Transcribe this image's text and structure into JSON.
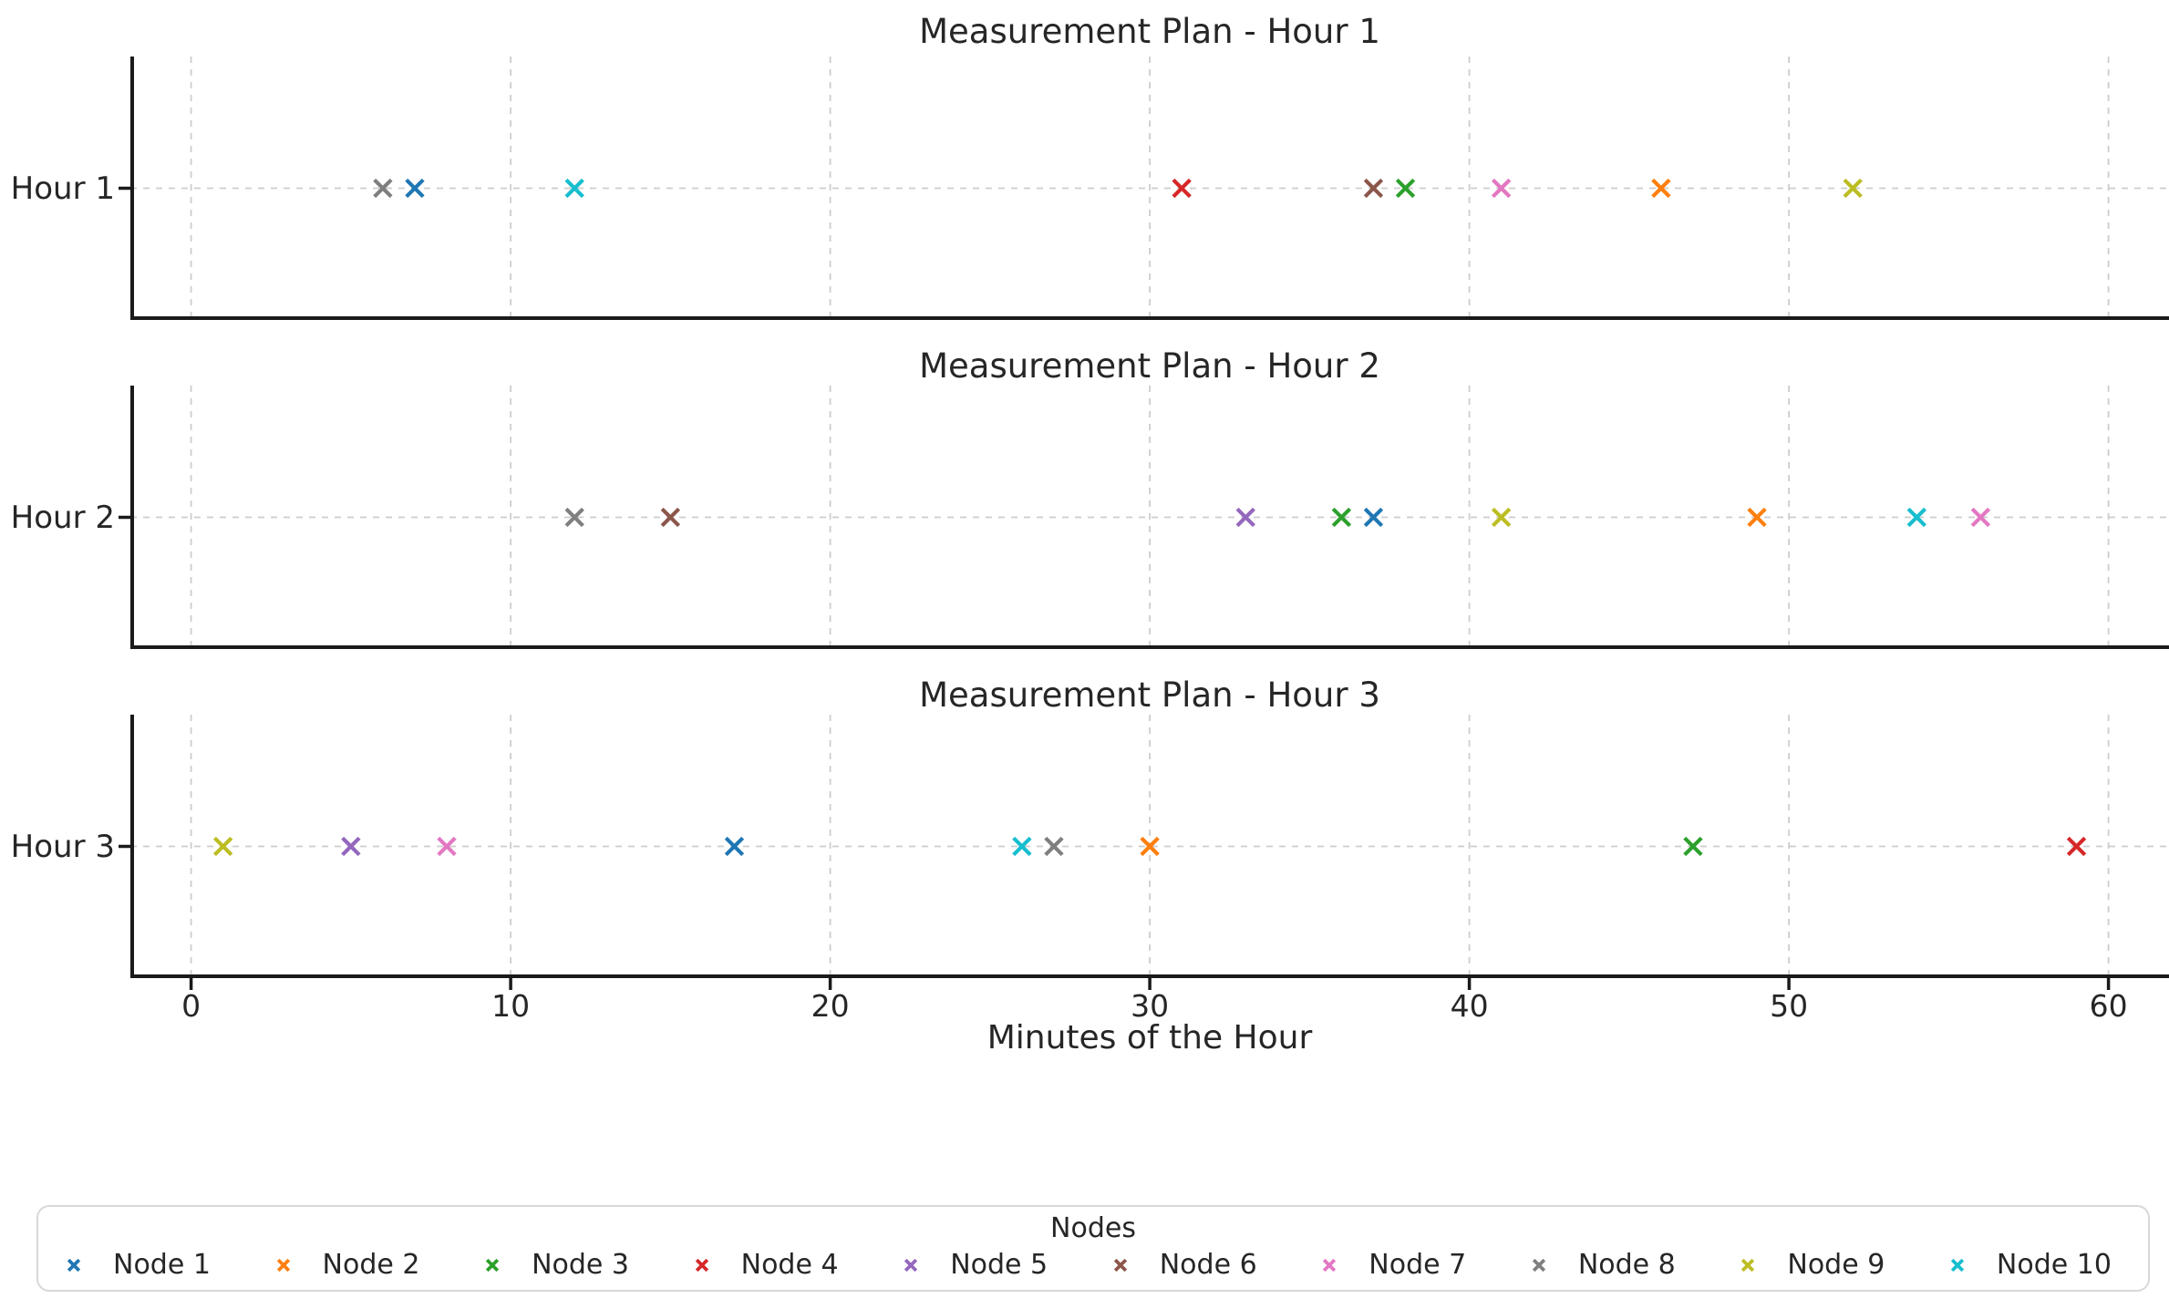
{
  "figure": {
    "background": "#ffffff"
  },
  "chart_data": {
    "type": "scatter",
    "marker": "x",
    "grid": true,
    "xlabel": "Minutes of the Hour",
    "xticks": [
      0,
      10,
      20,
      30,
      40,
      50,
      60
    ],
    "xlim": [
      -1.9,
      61.9
    ],
    "subplots": [
      {
        "title": "Measurement Plan - Hour 1",
        "ylabel": "Hour 1"
      },
      {
        "title": "Measurement Plan - Hour 2",
        "ylabel": "Hour 2"
      },
      {
        "title": "Measurement Plan - Hour 3",
        "ylabel": "Hour 3"
      }
    ],
    "hours": [
      "Hour 1",
      "Hour 2",
      "Hour 3"
    ],
    "series": [
      {
        "name": "Node 1",
        "color": "#1f77b4",
        "minutes_by_hour": [
          7,
          37,
          17
        ]
      },
      {
        "name": "Node 2",
        "color": "#ff7f0e",
        "minutes_by_hour": [
          46,
          49,
          30
        ]
      },
      {
        "name": "Node 3",
        "color": "#2ca02c",
        "minutes_by_hour": [
          38,
          36,
          47
        ]
      },
      {
        "name": "Node 4",
        "color": "#d62728",
        "minutes_by_hour": [
          31,
          null,
          59
        ]
      },
      {
        "name": "Node 5",
        "color": "#9467bd",
        "minutes_by_hour": [
          null,
          33,
          5
        ]
      },
      {
        "name": "Node 6",
        "color": "#8c564b",
        "minutes_by_hour": [
          37,
          15,
          null
        ]
      },
      {
        "name": "Node 7",
        "color": "#e377c2",
        "minutes_by_hour": [
          41,
          56,
          8
        ]
      },
      {
        "name": "Node 8",
        "color": "#7f7f7f",
        "minutes_by_hour": [
          6,
          12,
          27
        ]
      },
      {
        "name": "Node 9",
        "color": "#bcbd22",
        "minutes_by_hour": [
          52,
          41,
          1
        ]
      },
      {
        "name": "Node 10",
        "color": "#17becf",
        "minutes_by_hour": [
          12,
          54,
          26
        ]
      }
    ],
    "legend": {
      "title": "Nodes",
      "position": "bottom"
    }
  }
}
